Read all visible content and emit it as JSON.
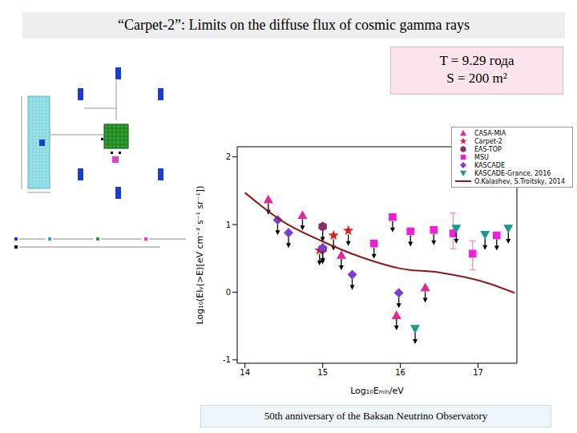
{
  "title": "“Carpet-2”: Limits on the diffuse flux of cosmic gamma rays",
  "info": [
    "T = 9.29 года",
    "S = 200 m²"
  ],
  "footer": "50th anniversary of the Baksan Neutrino Observatory",
  "chart_data": {
    "type": "scatter",
    "x_label": "Log₁₀Eₘᵢₙ/eV",
    "y_label": "Log₁₀(EIᵧ(>E)[eV cm⁻² s⁻¹ sr⁻¹])",
    "xlim": [
      13.9,
      17.5
    ],
    "xticks": [
      14,
      15,
      16,
      17
    ],
    "ylim": [
      -1.05,
      2.15
    ],
    "yticks": [
      -1,
      0,
      1,
      2
    ],
    "grid": false,
    "legend": "upper right",
    "series": [
      {
        "name": "CASA-MIA",
        "color": "#e0289a",
        "marker": "triangle",
        "upper_limit": true,
        "x": [
          14.3,
          14.74,
          15.24,
          15.95,
          16.32
        ],
        "values": [
          1.37,
          1.14,
          0.55,
          -0.34,
          0.07
        ]
      },
      {
        "name": "Carpet-2",
        "color": "#e02020",
        "marker": "star",
        "upper_limit": true,
        "x": [
          14.96,
          15.14,
          15.33
        ],
        "values": [
          0.62,
          0.84,
          0.91
        ]
      },
      {
        "name": "EAS-TOP",
        "color": "#8b2d6b",
        "marker": "hexagon",
        "upper_limit": true,
        "x": [
          15.0,
          15.0
        ],
        "values": [
          0.97,
          0.64
        ]
      },
      {
        "name": "MSU",
        "color": "#f020d8",
        "marker": "square",
        "upper_limit": true,
        "x": [
          15.66,
          15.9,
          16.13,
          16.43,
          16.68,
          16.93,
          17.24
        ],
        "values": [
          0.72,
          1.11,
          0.9,
          0.92,
          0.87,
          0.57,
          0.84
        ],
        "y_err": [
          null,
          null,
          null,
          null,
          [
            0.23,
            0.3
          ],
          [
            0.24,
            0.19
          ],
          null
        ]
      },
      {
        "name": "KASCADE",
        "color": "#7b3fd0",
        "marker": "diamond",
        "upper_limit": true,
        "x": [
          14.42,
          14.56,
          15.0,
          15.38,
          15.98
        ],
        "values": [
          1.07,
          0.88,
          0.66,
          0.26,
          -0.01
        ]
      },
      {
        "name": "KASCADE-Grance, 2016",
        "color": "#1a9a8a",
        "marker": "triangle-down",
        "upper_limit": true,
        "x": [
          16.19,
          16.72,
          17.09,
          17.39
        ],
        "values": [
          -0.54,
          0.94,
          0.85,
          0.94
        ]
      },
      {
        "name": "O.Kalashev, S.Troitsky, 2014",
        "color": "#8b1a1a",
        "type": "line",
        "x": [
          14.0,
          14.48,
          14.98,
          15.49,
          16.0,
          16.51,
          17.02,
          17.47
        ],
        "values": [
          1.47,
          1.05,
          0.76,
          0.52,
          0.35,
          0.29,
          0.17,
          -0.01
        ]
      }
    ]
  }
}
